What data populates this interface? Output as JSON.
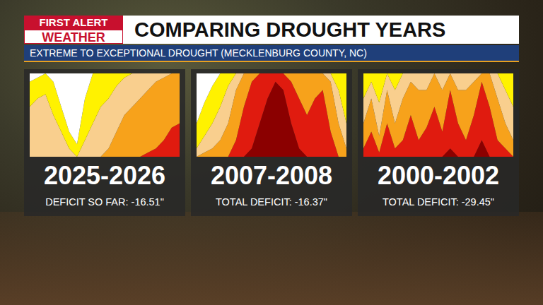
{
  "header": {
    "logo": [
      "FIRST ALERT",
      "WEATHER"
    ],
    "title": "COMPARING DROUGHT YEARS",
    "subtitle": "EXTREME TO EXCEPTIONAL DROUGHT (MECKLENBURG COUNTY, NC)"
  },
  "chart_data": [
    {
      "type": "area",
      "stacked": true,
      "title": "2025-2026",
      "subtitle": "DEFICIT SO FAR: -16.51\"",
      "grid": false,
      "tick_labels": false,
      "ylim": [
        0,
        100
      ],
      "yticks": [
        0,
        100
      ],
      "categories": [
        null,
        null,
        null,
        null,
        null,
        null,
        null,
        null,
        null,
        null,
        null,
        null,
        null,
        null,
        null,
        null,
        null,
        null,
        null,
        null
      ],
      "series": [
        {
          "color": "#8b0000",
          "values": [
            0,
            0,
            0,
            0,
            0,
            0,
            0,
            0,
            0,
            0,
            0,
            0,
            0,
            0,
            0,
            0,
            0,
            0,
            0,
            0
          ]
        },
        {
          "color": "#e01b0f",
          "values": [
            0,
            0,
            0,
            0,
            0,
            0,
            0,
            0,
            0,
            0,
            0,
            0,
            0,
            0,
            0,
            5,
            10,
            20,
            35,
            40
          ]
        },
        {
          "color": "#f7a21b",
          "values": [
            0,
            0,
            0,
            0,
            0,
            0,
            0,
            0,
            0,
            0,
            10,
            30,
            50,
            60,
            70,
            75,
            80,
            75,
            65,
            60
          ]
        },
        {
          "color": "#f9cf8e",
          "values": [
            60,
            70,
            75,
            50,
            30,
            10,
            0,
            20,
            40,
            60,
            60,
            55,
            45,
            40,
            30,
            20,
            10,
            5,
            0,
            0
          ]
        },
        {
          "color": "#fff200",
          "values": [
            30,
            25,
            25,
            40,
            30,
            20,
            15,
            50,
            60,
            40,
            30,
            15,
            5,
            0,
            0,
            0,
            0,
            0,
            0,
            0
          ]
        },
        {
          "color": "#ffffff",
          "values": [
            10,
            5,
            0,
            10,
            40,
            70,
            85,
            30,
            0,
            0,
            0,
            0,
            0,
            0,
            0,
            0,
            0,
            0,
            0,
            0
          ]
        }
      ]
    },
    {
      "type": "area",
      "stacked": true,
      "title": "2007-2008",
      "subtitle": "TOTAL DEFICIT: -16.37\"",
      "grid": false,
      "tick_labels": false,
      "ylim": [
        0,
        100
      ],
      "yticks": [
        0,
        100
      ],
      "categories": [
        null,
        null,
        null,
        null,
        null,
        null,
        null,
        null,
        null,
        null,
        null,
        null,
        null,
        null,
        null,
        null,
        null,
        null,
        null,
        null
      ],
      "series": [
        {
          "color": "#8b0000",
          "values": [
            0,
            0,
            0,
            0,
            0,
            0,
            0,
            10,
            40,
            70,
            90,
            80,
            40,
            10,
            0,
            0,
            0,
            0,
            0,
            0
          ]
        },
        {
          "color": "#e01b0f",
          "values": [
            0,
            0,
            0,
            0,
            0,
            20,
            60,
            80,
            60,
            30,
            10,
            20,
            50,
            60,
            50,
            70,
            80,
            30,
            0,
            0
          ]
        },
        {
          "color": "#f7a21b",
          "values": [
            0,
            5,
            10,
            20,
            40,
            60,
            40,
            10,
            0,
            0,
            0,
            0,
            10,
            30,
            50,
            30,
            20,
            60,
            40,
            10
          ]
        },
        {
          "color": "#f9cf8e",
          "values": [
            10,
            20,
            30,
            40,
            45,
            20,
            0,
            0,
            0,
            0,
            0,
            0,
            0,
            0,
            0,
            0,
            0,
            10,
            40,
            30
          ]
        },
        {
          "color": "#fff200",
          "values": [
            30,
            40,
            45,
            40,
            15,
            0,
            0,
            0,
            0,
            0,
            0,
            0,
            0,
            0,
            0,
            0,
            0,
            0,
            20,
            60
          ]
        },
        {
          "color": "#ffffff",
          "values": [
            60,
            35,
            15,
            0,
            0,
            0,
            0,
            0,
            0,
            0,
            0,
            0,
            0,
            0,
            0,
            0,
            0,
            0,
            0,
            0
          ]
        }
      ]
    },
    {
      "type": "area",
      "stacked": true,
      "title": "2000-2002",
      "subtitle": "TOTAL DEFICIT: -29.45\"",
      "grid": false,
      "tick_labels": false,
      "ylim": [
        0,
        100
      ],
      "yticks": [
        0,
        100
      ],
      "categories": [
        null,
        null,
        null,
        null,
        null,
        null,
        null,
        null,
        null,
        null,
        null,
        null,
        null,
        null,
        null,
        null,
        null,
        null,
        null,
        null
      ],
      "series": [
        {
          "color": "#8b0000",
          "values": [
            0,
            0,
            0,
            0,
            0,
            0,
            0,
            0,
            0,
            0,
            0,
            10,
            0,
            0,
            0,
            20,
            0,
            0,
            0,
            0
          ]
        },
        {
          "color": "#e01b0f",
          "values": [
            10,
            30,
            5,
            40,
            10,
            20,
            50,
            20,
            35,
            60,
            30,
            70,
            40,
            20,
            50,
            70,
            60,
            20,
            10,
            0
          ]
        },
        {
          "color": "#f7a21b",
          "values": [
            30,
            40,
            20,
            40,
            30,
            50,
            40,
            60,
            45,
            40,
            50,
            20,
            40,
            60,
            40,
            10,
            40,
            50,
            30,
            20
          ]
        },
        {
          "color": "#f9cf8e",
          "values": [
            30,
            20,
            40,
            20,
            40,
            30,
            10,
            20,
            20,
            0,
            20,
            0,
            20,
            20,
            10,
            0,
            0,
            30,
            40,
            40
          ]
        },
        {
          "color": "#fff200",
          "values": [
            30,
            10,
            35,
            0,
            20,
            0,
            0,
            0,
            0,
            0,
            0,
            0,
            0,
            0,
            0,
            0,
            0,
            0,
            20,
            40
          ]
        },
        {
          "color": "#ffffff",
          "values": [
            0,
            0,
            0,
            0,
            0,
            0,
            0,
            0,
            0,
            0,
            0,
            0,
            0,
            0,
            0,
            0,
            0,
            0,
            0,
            0
          ]
        }
      ]
    }
  ]
}
